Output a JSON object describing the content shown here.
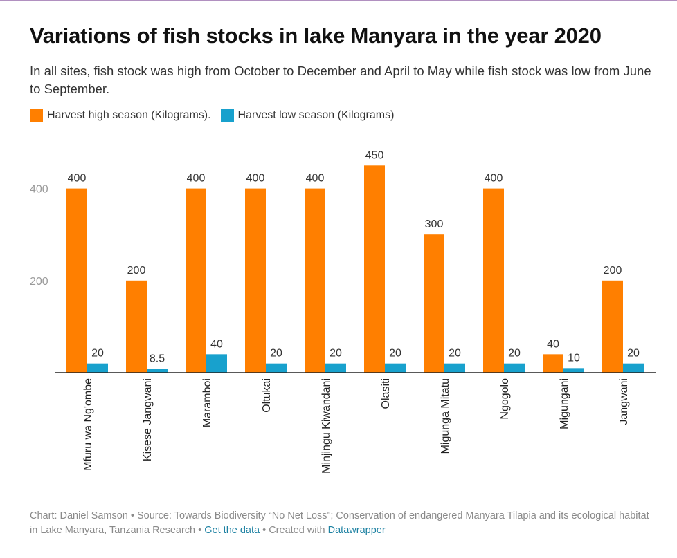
{
  "header": {
    "title": "Variations of fish stocks in lake Manyara in the year 2020",
    "subtitle": "In all sites, fish stock was high from October to December and April to May while fish stock was low from June to September."
  },
  "colors": {
    "high": "#ff7f00",
    "low": "#18a1cd"
  },
  "chart_data": {
    "type": "bar",
    "categories": [
      "Mfuru wa Ng'ombe",
      "Kisese Jangwani",
      "Maramboi",
      "Oltukai",
      "Minjingu Kiwandani",
      "Olasiti",
      "Migunga Mitatu",
      "Ngogolo",
      "Migungani",
      "Jangwani"
    ],
    "series": [
      {
        "name": "Harvest high season (Kilograms).",
        "values": [
          400,
          200,
          400,
          400,
          400,
          450,
          300,
          400,
          40,
          200
        ],
        "labels": [
          "400",
          "200",
          "400",
          "400",
          "400",
          "450",
          "300",
          "400",
          "40",
          "200"
        ]
      },
      {
        "name": "Harvest low season (Kilograms)",
        "values": [
          20,
          8.5,
          40,
          20,
          20,
          20,
          20,
          20,
          10,
          20
        ],
        "labels": [
          "20",
          "8.5",
          "40",
          "20",
          "20",
          "20",
          "20",
          "20",
          "10",
          "20"
        ]
      }
    ],
    "yticks": [
      200,
      400
    ],
    "ylim": [
      0,
      450
    ],
    "legend_position": "top-left",
    "grid": false
  },
  "footer": {
    "credit": "Chart: Daniel Samson • Source: Towards Biodiversity “No Net Loss”; Conservation of endangered Manyara Tilapia and its ecological habitat in Lake Manyara, Tanzania Research • ",
    "get_data": "Get the data",
    "created_with": " • Created with ",
    "datawrapper": "Datawrapper"
  }
}
